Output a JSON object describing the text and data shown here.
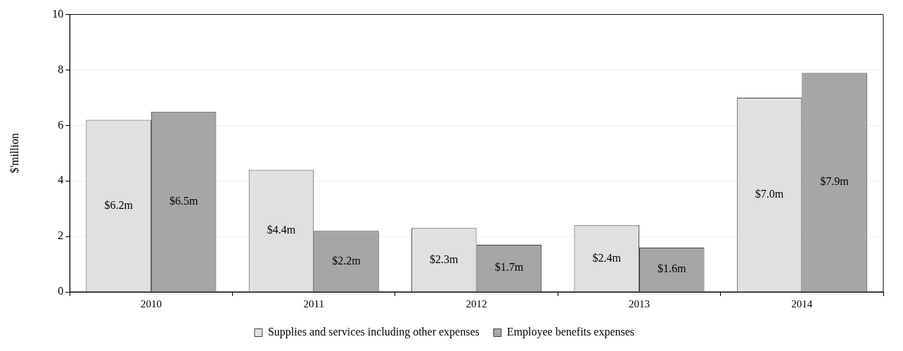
{
  "chart_data": {
    "type": "bar",
    "ylabel": "$'million",
    "categories": [
      "2010",
      "2011",
      "2012",
      "2013",
      "2014"
    ],
    "series": [
      {
        "name": "Supplies and services including other expenses",
        "color": "#e0e0e0",
        "values": [
          6.2,
          4.4,
          2.3,
          2.4,
          7.0
        ],
        "value_labels": [
          "$6.2m",
          "$4.4m",
          "$2.3m",
          "$2.4m",
          "$7.0m"
        ]
      },
      {
        "name": "Employee benefits expenses",
        "color": "#a6a6a6",
        "values": [
          6.5,
          2.2,
          1.7,
          1.6,
          7.9
        ],
        "value_labels": [
          "$6.5m",
          "$2.2m",
          "$1.7m",
          "$1.6m",
          "$7.9m"
        ]
      }
    ],
    "ylim": [
      0,
      10
    ],
    "yticks": [
      0,
      2,
      4,
      6,
      8,
      10
    ],
    "grid": "y",
    "legend": "bottom"
  }
}
